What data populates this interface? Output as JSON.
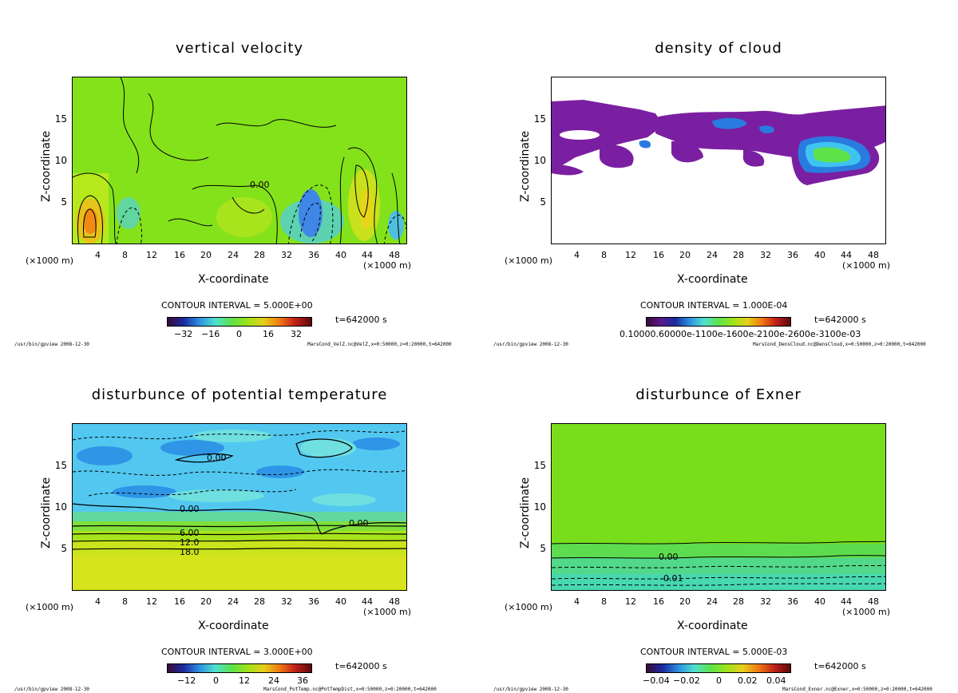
{
  "chart_data": [
    {
      "type": "heatmap",
      "title": "vertical velocity",
      "xlabel": "X-coordinate",
      "ylabel": "Z-coordinate",
      "x_unit": "(×1000 m)",
      "xlim": [
        0,
        50
      ],
      "ylim": [
        0,
        20
      ],
      "x_ticks": [
        "4",
        "8",
        "12",
        "16",
        "20",
        "24",
        "28",
        "32",
        "36",
        "40",
        "44",
        "48"
      ],
      "y_ticks": [
        "5",
        "10",
        "15"
      ],
      "contour_interval": "CONTOUR INTERVAL = 5.000E+00",
      "colorbar_ticks": [
        "−32",
        "−16",
        "0",
        "16",
        "32"
      ],
      "time": "t=642000 s",
      "contour_labels": [
        "0.00"
      ],
      "footer_left": "/usr/bin/gpview  2008-12-30",
      "footer_right": "MarsCond_VelZ.nc@VelZ,x=0:50000,z=0:20000,t=642000",
      "background_color": "#84e21a"
    },
    {
      "type": "heatmap",
      "title": "density of cloud",
      "xlabel": "X-coordinate",
      "ylabel": "Z-coordinate",
      "x_unit": "(×1000 m)",
      "xlim": [
        0,
        50
      ],
      "ylim": [
        0,
        20
      ],
      "x_ticks": [
        "4",
        "8",
        "12",
        "16",
        "20",
        "24",
        "28",
        "32",
        "36",
        "40",
        "44",
        "48"
      ],
      "y_ticks": [
        "5",
        "10",
        "15"
      ],
      "contour_interval": "CONTOUR INTERVAL = 1.000E-04",
      "colorbar_ticks": [
        "0.1000e-03",
        "0.6000e-03",
        "0.1100e-02",
        "0.1600e-02",
        "0.2100e-02",
        "0.2600e-02",
        "0.3100e-02"
      ],
      "colorbar_ticks_raw": "0.10000.60000e-1100e-1600e-2100e-2600e-3100e-03",
      "time": "t=642000 s",
      "footer_left": "/usr/bin/gpview  2008-12-30",
      "footer_right": "MarsCond_DensCloud.nc@DensCloud,x=0:50000,z=0:20000,t=642000",
      "background_color": "#ffffff"
    },
    {
      "type": "heatmap",
      "title": "disturbunce of potential temperature",
      "xlabel": "X-coordinate",
      "ylabel": "Z-coordinate",
      "x_unit": "(×1000 m)",
      "xlim": [
        0,
        50
      ],
      "ylim": [
        0,
        20
      ],
      "x_ticks": [
        "4",
        "8",
        "12",
        "16",
        "20",
        "24",
        "28",
        "32",
        "36",
        "40",
        "44",
        "48"
      ],
      "y_ticks": [
        "5",
        "10",
        "15"
      ],
      "contour_interval": "CONTOUR INTERVAL = 3.000E+00",
      "colorbar_ticks": [
        "−12",
        "0",
        "12",
        "24",
        "36"
      ],
      "time": "t=642000 s",
      "contour_labels": [
        "0.00",
        "0.00",
        "0.00",
        "6.00",
        "12.0",
        "18.0"
      ],
      "footer_left": "/usr/bin/gpview  2008-12-30",
      "footer_right": "MarsCond_PotTemp.nc@PotTempDist,x=0:50000,z=0:20000,t=642000",
      "background_color": "#3fc3f0"
    },
    {
      "type": "heatmap",
      "title": "disturbunce of Exner",
      "xlabel": "X-coordinate",
      "ylabel": "Z-coordinate",
      "x_unit": "(×1000 m)",
      "xlim": [
        0,
        50
      ],
      "ylim": [
        0,
        20
      ],
      "x_ticks": [
        "4",
        "8",
        "12",
        "16",
        "20",
        "24",
        "28",
        "32",
        "36",
        "40",
        "44",
        "48"
      ],
      "y_ticks": [
        "5",
        "10",
        "15"
      ],
      "contour_interval": "CONTOUR INTERVAL = 5.000E-03",
      "colorbar_ticks": [
        "−0.04",
        "−0.02",
        "0",
        "0.02",
        "0.04"
      ],
      "time": "t=642000 s",
      "contour_labels": [
        "0.00",
        "-0.01"
      ],
      "footer_left": "/usr/bin/gpview  2008-12-30",
      "footer_right": "MarsCond_Exner.nc@Exner,x=0:50000,z=0:20000,t=642000",
      "background_color": "#6fdc1c"
    }
  ]
}
